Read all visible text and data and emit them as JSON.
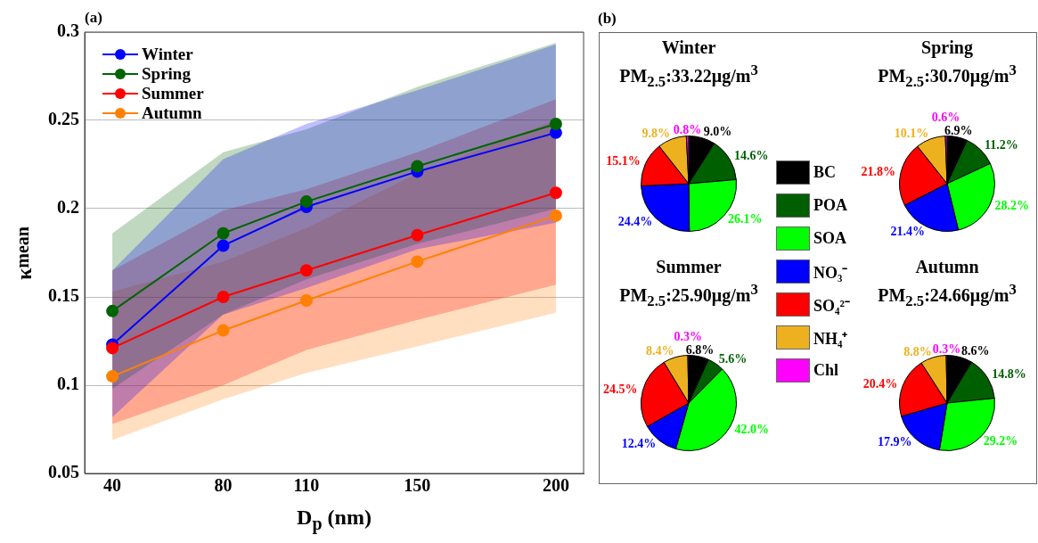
{
  "chart_data": [
    {
      "type": "line",
      "annotations": [
        "(a)"
      ],
      "xlabel": "D$_{p}$ (nm)",
      "ylabel": "κ$_{mean}$",
      "x": [
        40,
        80,
        110,
        150,
        200
      ],
      "xlim": [
        30,
        210
      ],
      "xticks": [
        40,
        80,
        110,
        150,
        200
      ],
      "ylim": [
        0.05,
        0.3
      ],
      "yticks": [
        0.05,
        0.1,
        0.15,
        0.2,
        0.25,
        0.3
      ],
      "grid": "y",
      "legend": "top left",
      "marker": "circle",
      "line_style": "solid",
      "series": [
        {
          "name": "Winter",
          "color": "#0000ff",
          "values": [
            0.123,
            0.179,
            0.201,
            0.221,
            0.243
          ],
          "lower": [
            0.082,
            0.14,
            0.155,
            0.177,
            0.192
          ],
          "upper": [
            0.165,
            0.228,
            0.248,
            0.267,
            0.293
          ]
        },
        {
          "name": "Spring",
          "color": "#006400",
          "values": [
            0.142,
            0.186,
            0.204,
            0.224,
            0.248
          ],
          "lower": [
            0.098,
            0.14,
            0.16,
            0.18,
            0.2
          ],
          "upper": [
            0.186,
            0.232,
            0.245,
            0.269,
            0.294
          ]
        },
        {
          "name": "Summer",
          "color": "#ff0000",
          "values": [
            0.121,
            0.15,
            0.165,
            0.185,
            0.209
          ],
          "lower": [
            0.078,
            0.1,
            0.12,
            0.137,
            0.157
          ],
          "upper": [
            0.165,
            0.199,
            0.211,
            0.232,
            0.262
          ]
        },
        {
          "name": "Autumn",
          "color": "#ff8000",
          "values": [
            0.105,
            0.131,
            0.148,
            0.17,
            0.196
          ],
          "lower": [
            0.069,
            0.092,
            0.107,
            0.122,
            0.141
          ],
          "upper": [
            0.153,
            0.17,
            0.189,
            0.22,
            0.25
          ]
        }
      ]
    },
    {
      "type": "pie",
      "title": "Winter",
      "subtitle": "PM$_{2.5}$:33.22μg/m$^{3}$",
      "annotations": [
        "(b)"
      ],
      "legend": "right",
      "categories": [
        "BC",
        "POA",
        "SOA",
        "NO₃⁻",
        "SO₄²⁻",
        "NH₄⁺",
        "Chl"
      ],
      "values": [
        9.0,
        14.6,
        26.1,
        24.4,
        15.1,
        9.8,
        0.8
      ],
      "value_labels": [
        "9.0%",
        "14.6%",
        "26.1%",
        "24.4%",
        "15.1%",
        "9.8%",
        "0.8%"
      ],
      "colors": [
        "#000000",
        "#005f00",
        "#00ff00",
        "#0000ff",
        "#ff0000",
        "#edb120",
        "#ff00ff"
      ]
    },
    {
      "type": "pie",
      "title": "Spring",
      "subtitle": "PM$_{2.5}$:30.70μg/m$^{3}$",
      "categories": [
        null,
        null,
        null,
        null,
        null,
        null,
        null
      ],
      "values": [
        6.9,
        11.2,
        28.2,
        21.4,
        21.8,
        10.1,
        0.6
      ],
      "value_labels": [
        "6.9%",
        "11.2%",
        "28.2%",
        "21.4%",
        "21.8%",
        "10.1%",
        "0.6%"
      ],
      "colors": [
        "#000000",
        "#005f00",
        "#00ff00",
        "#0000ff",
        "#ff0000",
        "#edb120",
        "#ff00ff"
      ]
    },
    {
      "type": "pie",
      "title": "Summer",
      "subtitle": "PM$_{2.5}$:25.90μg/m$^{3}$",
      "categories": [
        null,
        null,
        null,
        null,
        null,
        null,
        null
      ],
      "values": [
        6.8,
        5.6,
        42.0,
        12.4,
        24.5,
        8.4,
        0.3
      ],
      "value_labels": [
        "6.8%",
        "5.6%",
        "42.0%",
        "12.4%",
        "24.5%",
        "8.4%",
        "0.3%"
      ],
      "colors": [
        "#000000",
        "#005f00",
        "#00ff00",
        "#0000ff",
        "#ff0000",
        "#edb120",
        "#ff00ff"
      ]
    },
    {
      "type": "pie",
      "title": "Autumn",
      "subtitle": "PM$_{2.5}$:24.66μg/m$^{3}$",
      "categories": [
        null,
        null,
        null,
        null,
        null,
        null,
        null
      ],
      "values": [
        8.6,
        14.8,
        29.2,
        17.9,
        20.4,
        8.8,
        0.3
      ],
      "value_labels": [
        "8.6%",
        "14.8%",
        "29.2%",
        "17.9%",
        "20.4%",
        "8.8%",
        "0.3%"
      ],
      "colors": [
        "#000000",
        "#005f00",
        "#00ff00",
        "#0000ff",
        "#ff0000",
        "#edb120",
        "#ff00ff"
      ]
    }
  ]
}
